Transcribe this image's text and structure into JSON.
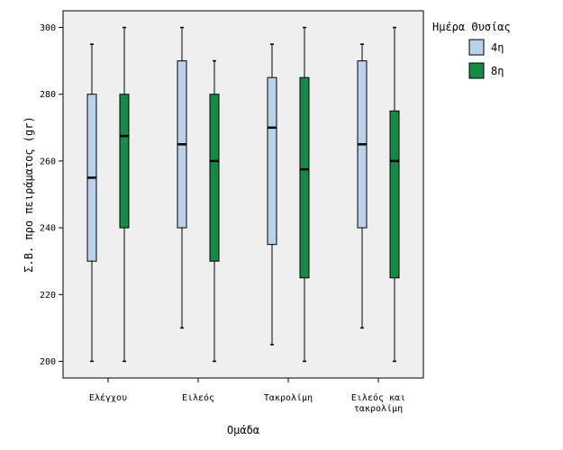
{
  "chart_data": {
    "type": "box",
    "xlabel": "Ομάδα",
    "ylabel": "Σ.Β. προ πειράματος (gr)",
    "ylim": [
      195,
      305
    ],
    "yticks": [
      200,
      220,
      240,
      260,
      280,
      300
    ],
    "categories": [
      {
        "label_lines": [
          "Ελέγχου"
        ]
      },
      {
        "label_lines": [
          "Ειλεός"
        ]
      },
      {
        "label_lines": [
          "Τακρολίμη"
        ]
      },
      {
        "label_lines": [
          "Ειλεός και",
          "τακρολίμη"
        ]
      }
    ],
    "legend": {
      "title": "Ημέρα Θυσίας",
      "position": "right"
    },
    "series": [
      {
        "name": "4η",
        "color": "#b8d2ec",
        "boxes": [
          {
            "min": 200,
            "q1": 230,
            "median": 255,
            "q3": 280,
            "max": 295
          },
          {
            "min": 210,
            "q1": 240,
            "median": 265,
            "q3": 290,
            "max": 300
          },
          {
            "min": 205,
            "q1": 235,
            "median": 270,
            "q3": 285,
            "max": 295
          },
          {
            "min": 210,
            "q1": 240,
            "median": 265,
            "q3": 290,
            "max": 295
          }
        ]
      },
      {
        "name": "8η",
        "color": "#178a45",
        "boxes": [
          {
            "min": 200,
            "q1": 240,
            "median": 267.5,
            "q3": 280,
            "max": 300
          },
          {
            "min": 200,
            "q1": 230,
            "median": 260,
            "q3": 280,
            "max": 290
          },
          {
            "min": 200,
            "q1": 225,
            "median": 257.5,
            "q3": 285,
            "max": 300
          },
          {
            "min": 200,
            "q1": 225,
            "median": 260,
            "q3": 275,
            "max": 300
          }
        ]
      }
    ],
    "grid": false,
    "plot_background": "#efefef"
  }
}
